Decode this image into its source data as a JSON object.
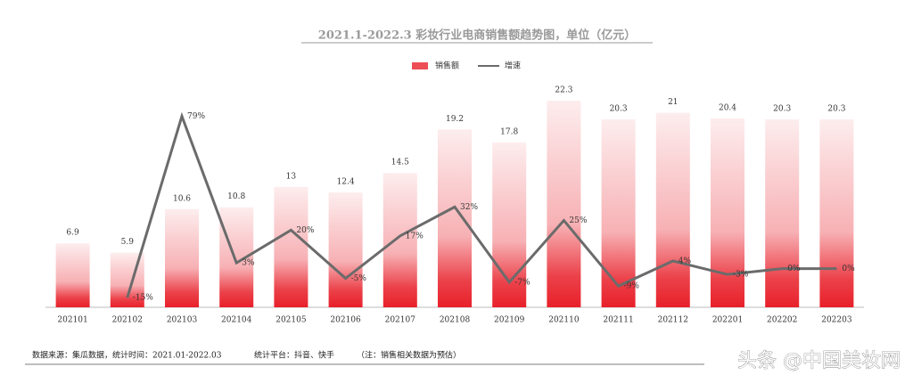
{
  "chart_data": {
    "type": "bar_line",
    "title": "2021.1-2022.3 彩妆行业电商销售额趋势图，单位（亿元）",
    "categories": [
      "202101",
      "202102",
      "202103",
      "202104",
      "202105",
      "202106",
      "202107",
      "202108",
      "202109",
      "202110",
      "202111",
      "202112",
      "202201",
      "202202",
      "202203"
    ],
    "series": [
      {
        "name": "销售额",
        "type": "bar",
        "color": "#e8202a",
        "values": [
          6.9,
          5.9,
          10.6,
          10.8,
          13,
          12.4,
          14.5,
          19.2,
          17.8,
          22.3,
          20.3,
          21,
          20.4,
          20.3,
          20.3
        ]
      },
      {
        "name": "增速",
        "type": "line",
        "axis": "y2",
        "color": "#6b6b6b",
        "values": [
          null,
          -15,
          79,
          3,
          20,
          -5,
          17,
          32,
          -7,
          25,
          -9,
          4,
          -3,
          0,
          0
        ],
        "value_labels": [
          null,
          "-15%",
          "79%",
          "3%",
          "20%",
          "-5%",
          "17%",
          "32%",
          "-7%",
          "25%",
          "-9%",
          "4%",
          "-3%",
          "0%",
          "0%"
        ]
      }
    ],
    "ylim": [
      0,
      25
    ],
    "y2lim": [
      -20,
      100
    ],
    "legend": "top",
    "footer": [
      "数据来源：集瓜数据，统计时间：2021.01-2022.03",
      "统计平台：抖音、快手",
      "（注：销售相关数据为预估）"
    ],
    "watermark": "头条 @中国美妆网"
  }
}
